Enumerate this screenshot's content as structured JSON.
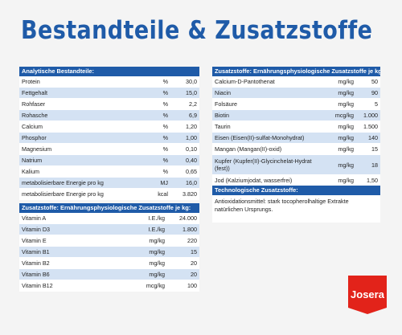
{
  "title": "Bestandteile & Zusatzstoffe",
  "analytic": {
    "header": "Analytische Bestandteile:",
    "rows": [
      {
        "name": "Protein",
        "unit": "%",
        "value": "30,0"
      },
      {
        "name": "Fettgehalt",
        "unit": "%",
        "value": "15,0"
      },
      {
        "name": "Rohfaser",
        "unit": "%",
        "value": "2,2"
      },
      {
        "name": "Rohasche",
        "unit": "%",
        "value": "6,9"
      },
      {
        "name": "Calcium",
        "unit": "%",
        "value": "1,20"
      },
      {
        "name": "Phosphor",
        "unit": "%",
        "value": "1,00"
      },
      {
        "name": "Magnesium",
        "unit": "%",
        "value": "0,10"
      },
      {
        "name": "Natrium",
        "unit": "%",
        "value": "0,40"
      },
      {
        "name": "Kalium",
        "unit": "%",
        "value": "0,65"
      },
      {
        "name": "metabolisierbare Energie pro kg",
        "unit": "MJ",
        "value": "16,0"
      },
      {
        "name": "metabolisierbare Energie pro kg",
        "unit": "kcal",
        "value": "3.820"
      }
    ]
  },
  "vitamins": {
    "header": "Zusatzstoffe: Ernährungsphysiologische Zusatzstoffe je kg:",
    "rows": [
      {
        "name": "Vitamin A",
        "unit": "I.E./kg",
        "value": "24.000"
      },
      {
        "name": "Vitamin D3",
        "unit": "I.E./kg",
        "value": "1.800"
      },
      {
        "name": "Vitamin E",
        "unit": "mg/kg",
        "value": "220"
      },
      {
        "name": "Vitamin B1",
        "unit": "mg/kg",
        "value": "15"
      },
      {
        "name": "Vitamin B2",
        "unit": "mg/kg",
        "value": "20"
      },
      {
        "name": "Vitamin B6",
        "unit": "mg/kg",
        "value": "20"
      },
      {
        "name": "Vitamin B12",
        "unit": "mcg/kg",
        "value": "100"
      }
    ]
  },
  "minerals": {
    "header": "Zusatzstoffe: Ernährungsphysiologische Zusatzstoffe je kg:",
    "rows": [
      {
        "name": "Calcium-D-Pantothenat",
        "unit": "mg/kg",
        "value": "50"
      },
      {
        "name": "Niacin",
        "unit": "mg/kg",
        "value": "90"
      },
      {
        "name": "Folsäure",
        "unit": "mg/kg",
        "value": "5"
      },
      {
        "name": "Biotin",
        "unit": "mcg/kg",
        "value": "1.000"
      },
      {
        "name": "Taurin",
        "unit": "mg/kg",
        "value": "1.500"
      },
      {
        "name": "Eisen (Eisen(II)-sulfat-Monohydrat)",
        "unit": "mg/kg",
        "value": "140"
      },
      {
        "name": "Mangan (Mangan(II)-oxid)",
        "unit": "mg/kg",
        "value": "15"
      },
      {
        "name": "Kupfer (Kupfer(II)-Glycinchelat-Hydrat (fest))",
        "unit": "mg/kg",
        "value": "18"
      },
      {
        "name": "Jod (Kalziumjodat, wasserfrei)",
        "unit": "mg/kg",
        "value": "1,50"
      }
    ]
  },
  "technological": {
    "header": "Technologische Zusatzstoffe:",
    "text": "Antioxidationsmittel: stark tocopherolhaltige Extrakte natürlichen Ursprungs."
  },
  "brand": {
    "name": "Josera",
    "color": "#e2231a"
  },
  "colors": {
    "primary": "#1f5ba8",
    "stripe": "#d4e2f3",
    "background": "#f4f4f4"
  }
}
